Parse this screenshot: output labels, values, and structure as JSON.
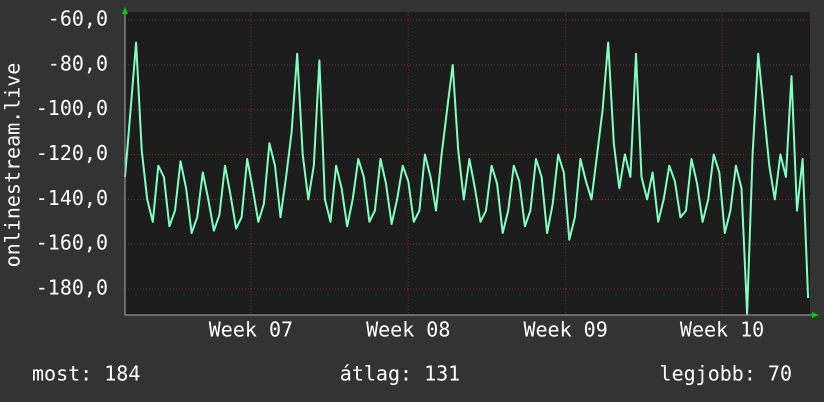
{
  "chart_data": {
    "type": "line",
    "y_label": "onlinestream.live",
    "ylim": [
      -191.6,
      -56.4
    ],
    "yticks": [
      {
        "value": -60,
        "label": "-60,0"
      },
      {
        "value": -80,
        "label": "-80,0"
      },
      {
        "value": -100,
        "label": "-100,0"
      },
      {
        "value": -120,
        "label": "-120,0"
      },
      {
        "value": -140,
        "label": "-140,0"
      },
      {
        "value": -160,
        "label": "-160,0"
      },
      {
        "value": -180,
        "label": "-180,0"
      }
    ],
    "xlim": [
      0,
      740
    ],
    "xticks": [
      {
        "value": 136,
        "label": "Week 07"
      },
      {
        "value": 306,
        "label": "Week 08"
      },
      {
        "value": 476,
        "label": "Week 09"
      },
      {
        "value": 645,
        "label": "Week 10"
      }
    ],
    "grid": true,
    "series": [
      {
        "color": "#80ffc0",
        "x": [
          0,
          6,
          12,
          18,
          24,
          30,
          36,
          42,
          48,
          54,
          60,
          66,
          72,
          78,
          84,
          90,
          96,
          102,
          108,
          114,
          120,
          126,
          132,
          138,
          144,
          150,
          156,
          162,
          168,
          174,
          180,
          186,
          192,
          198,
          204,
          210,
          216,
          222,
          228,
          234,
          240,
          246,
          252,
          258,
          264,
          270,
          276,
          282,
          288,
          294,
          300,
          306,
          312,
          318,
          324,
          330,
          336,
          342,
          348,
          354,
          360,
          366,
          372,
          378,
          384,
          390,
          396,
          402,
          408,
          414,
          420,
          426,
          432,
          438,
          444,
          450,
          456,
          462,
          468,
          474,
          480,
          486,
          492,
          498,
          504,
          510,
          516,
          522,
          528,
          534,
          540,
          546,
          552,
          558,
          564,
          570,
          576,
          582,
          588,
          594,
          600,
          606,
          612,
          618,
          624,
          630,
          636,
          642,
          648,
          654,
          660,
          666,
          672,
          678,
          684,
          690,
          696,
          702,
          708,
          714,
          720,
          726,
          732,
          738
        ],
        "values": [
          -130,
          -100,
          -70,
          -118,
          -140,
          -150,
          -125,
          -130,
          -152,
          -145,
          -123,
          -135,
          -155,
          -148,
          -128,
          -140,
          -154,
          -147,
          -125,
          -138,
          -153,
          -148,
          -122,
          -135,
          -150,
          -142,
          -115,
          -125,
          -148,
          -130,
          -110,
          -75,
          -120,
          -140,
          -125,
          -78,
          -140,
          -150,
          -125,
          -135,
          -152,
          -140,
          -122,
          -130,
          -150,
          -145,
          -122,
          -133,
          -151,
          -140,
          -125,
          -132,
          -150,
          -145,
          -120,
          -130,
          -145,
          -120,
          -100,
          -80,
          -118,
          -140,
          -122,
          -135,
          -150,
          -145,
          -125,
          -133,
          -155,
          -145,
          -125,
          -132,
          -152,
          -145,
          -122,
          -130,
          -155,
          -142,
          -120,
          -128,
          -158,
          -148,
          -122,
          -132,
          -140,
          -120,
          -100,
          -70,
          -115,
          -135,
          -120,
          -130,
          -75,
          -130,
          -140,
          -128,
          -150,
          -140,
          -125,
          -132,
          -148,
          -145,
          -122,
          -133,
          -150,
          -140,
          -120,
          -128,
          -155,
          -145,
          -125,
          -135,
          -191,
          -120,
          -75,
          -100,
          -125,
          -140,
          -120,
          -130,
          -85,
          -145,
          -122,
          -184
        ]
      }
    ],
    "annotations": [
      "most: 184",
      "átlag: 131",
      "legjobb: 70"
    ]
  }
}
